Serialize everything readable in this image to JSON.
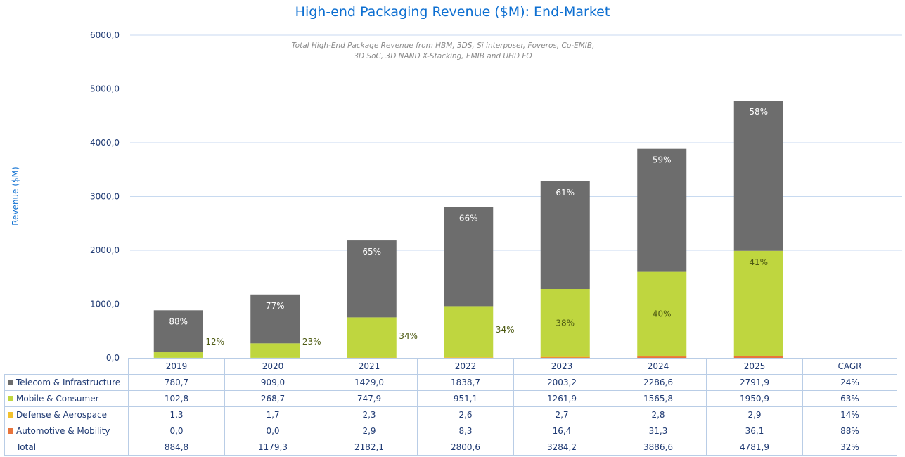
{
  "chart_data": {
    "type": "bar",
    "stacked": true,
    "title": "High-end Packaging Revenue ($M): End-Market",
    "subtitle_lines": [
      "Total High-End Package Revenue from HBM, 3DS, Si interposer, Foveros, Co-EMIB,",
      "3D SoC, 3D NAND X-Stacking, EMIB and UHD FO"
    ],
    "ylabel": "Revenue ($M)",
    "ylim": [
      0,
      6000
    ],
    "yticks": [
      "0,0",
      "1000,0",
      "2000,0",
      "3000,0",
      "4000,0",
      "5000,0",
      "6000,0"
    ],
    "grid": true,
    "legend": "data-table-below",
    "categories": [
      "2019",
      "2020",
      "2021",
      "2022",
      "2023",
      "2024",
      "2025"
    ],
    "series": [
      {
        "name": "Automotive & Mobility",
        "color": "#e8743b",
        "values": [
          0.0,
          0.0,
          2.9,
          8.3,
          16.4,
          31.3,
          36.1
        ],
        "table": [
          "0,0",
          "0,0",
          "2,9",
          "8,3",
          "16,4",
          "31,3",
          "36,1"
        ],
        "cagr": "88%"
      },
      {
        "name": "Defense & Aerospace",
        "color": "#f2c12e",
        "values": [
          1.3,
          1.7,
          2.3,
          2.6,
          2.7,
          2.8,
          2.9
        ],
        "table": [
          "1,3",
          "1,7",
          "2,3",
          "2,6",
          "2,7",
          "2,8",
          "2,9"
        ],
        "cagr": "14%"
      },
      {
        "name": "Mobile & Consumer",
        "color": "#bfd63f",
        "values": [
          102.8,
          268.7,
          747.9,
          951.1,
          1261.9,
          1565.8,
          1950.9
        ],
        "table": [
          "102,8",
          "268,7",
          "747,9",
          "951,1",
          "1261,9",
          "1565,8",
          "1950,9"
        ],
        "cagr": "63%",
        "share_labels": [
          "12%",
          "23%",
          "34%",
          "34%",
          "38%",
          "40%",
          "41%"
        ]
      },
      {
        "name": "Telecom & Infrastructure",
        "color": "#6d6d6d",
        "values": [
          780.7,
          909.0,
          1429.0,
          1838.7,
          2003.2,
          2286.6,
          2791.9
        ],
        "table": [
          "780,7",
          "909,0",
          "1429,0",
          "1838,7",
          "2003,2",
          "2286,6",
          "2791,9"
        ],
        "cagr": "24%",
        "share_labels": [
          "88%",
          "77%",
          "65%",
          "66%",
          "61%",
          "59%",
          "58%"
        ]
      }
    ],
    "totals": {
      "name": "Total",
      "table": [
        "884,8",
        "1179,3",
        "2182,1",
        "2800,6",
        "3284,2",
        "3886,6",
        "4781,9"
      ],
      "cagr": "32%"
    },
    "table_headers": [
      "2019",
      "2020",
      "2021",
      "2022",
      "2023",
      "2024",
      "2025",
      "CAGR"
    ]
  }
}
